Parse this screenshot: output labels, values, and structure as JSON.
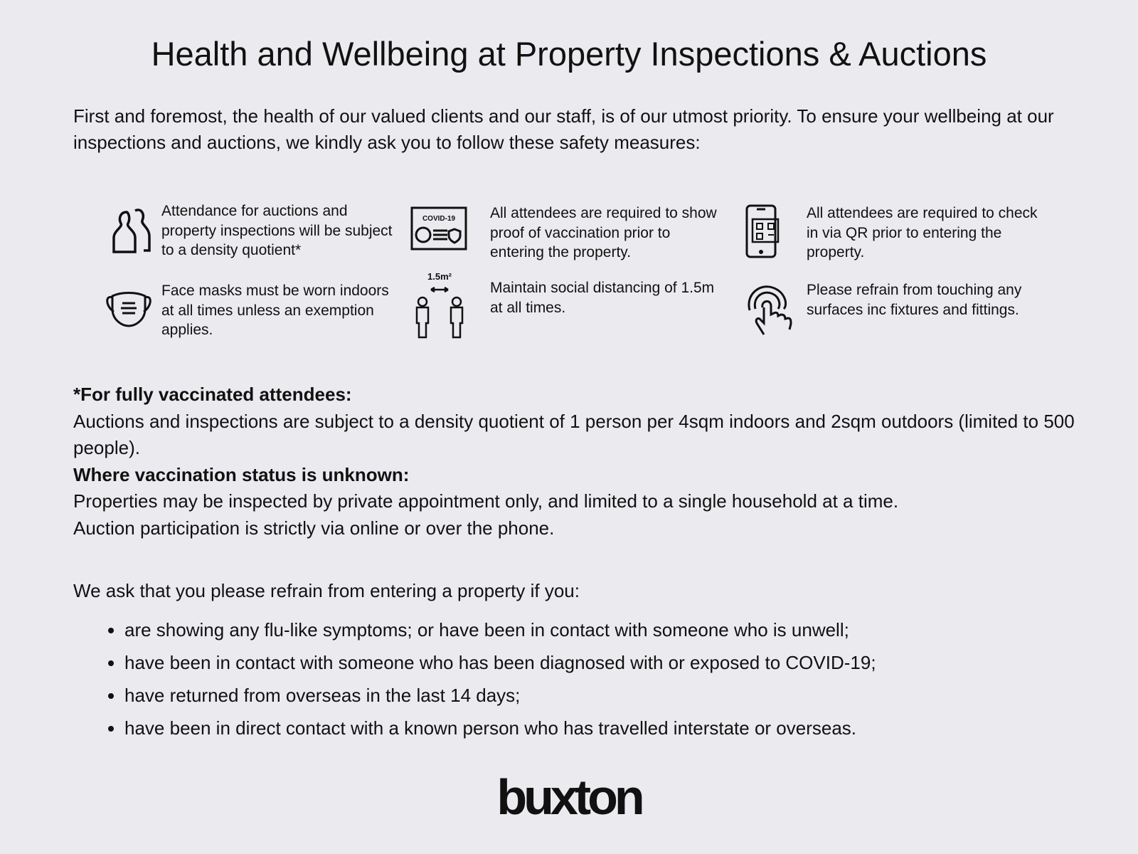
{
  "title": "Health and Wellbeing at Property Inspections & Auctions",
  "intro": "First and foremost, the health of our valued clients and our staff, is of our utmost priority. To ensure your wellbeing at our inspections and auctions, we kindly ask you to follow these safety measures:",
  "measures": [
    {
      "icon": "people-icon",
      "text": "Attendance for auctions and property inspections will be subject to a density quotient*"
    },
    {
      "icon": "covid-certificate-icon",
      "icon_label": "COVID-19",
      "text": "All attendees are required to show proof of vaccination prior to entering the property."
    },
    {
      "icon": "phone-qr-icon",
      "text": "All attendees are required to check in via QR prior to entering the property."
    },
    {
      "icon": "face-mask-icon",
      "text": "Face masks must be worn indoors at all times unless an exemption applies."
    },
    {
      "icon": "social-distance-icon",
      "icon_label": "1.5m²",
      "text": "Maintain social distancing of 1.5m at all times."
    },
    {
      "icon": "touch-hand-icon",
      "text": "Please refrain from touching any surfaces inc fixtures and fittings."
    }
  ],
  "vaccinated": {
    "heading": "*For fully vaccinated attendees:",
    "text": "Auctions and inspections are subject to a density quotient of 1 person per 4sqm indoors and 2sqm outdoors (limited to 500 people)."
  },
  "unknown": {
    "heading": "Where vaccination status is unknown:",
    "line1": "Properties may be inspected by private appointment only, and limited to a single household at a time.",
    "line2": "Auction participation is strictly via online or over the phone."
  },
  "ask": "We ask that you please refrain from entering a property if you:",
  "bullets": [
    "are showing any flu-like symptoms; or have been in contact with someone who is unwell;",
    "have been in contact with someone who has been diagnosed with or exposed to COVID-19;",
    "have returned from overseas in the last 14 days;",
    "have been in direct contact with a known person who has travelled interstate or overseas."
  ],
  "logo": "buxton"
}
